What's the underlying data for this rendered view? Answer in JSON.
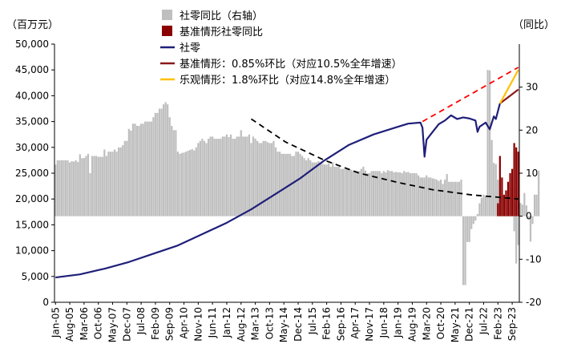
{
  "chart_data": {
    "type": "line",
    "left_axis_unit": "（百万元）",
    "right_axis_unit": "（同比）",
    "left_axis": {
      "ylim": [
        0,
        50000
      ],
      "ticks": [
        0,
        5000,
        10000,
        15000,
        20000,
        25000,
        30000,
        35000,
        40000,
        45000,
        50000
      ],
      "tick_labels": [
        "0",
        "5,000",
        "10,000",
        "15,000",
        "20,000",
        "25,000",
        "30,000",
        "35,000",
        "40,000",
        "45,000",
        "50,000"
      ]
    },
    "right_axis": {
      "ylim": [
        -20,
        40
      ],
      "ticks": [
        -20,
        -10,
        0,
        10,
        20,
        30
      ],
      "tick_labels": [
        "-20",
        "-10",
        "0",
        "10",
        "20",
        "30"
      ]
    },
    "x_axis": {
      "range": [
        "Jan-05",
        "Dec-23"
      ],
      "tick_labels": [
        "Jan-05",
        "Aug-05",
        "Mar-06",
        "Oct-06",
        "May-07",
        "Dec-07",
        "Jul-08",
        "Feb-09",
        "Sep-09",
        "Apr-10",
        "Nov-10",
        "Jun-11",
        "Jan-12",
        "Aug-12",
        "Mar-13",
        "Oct-13",
        "May-14",
        "Dec-14",
        "Jul-15",
        "Feb-16",
        "Sep-16",
        "Apr-17",
        "Nov-17",
        "Jun-18",
        "Jan-19",
        "Aug-19",
        "Mar-20",
        "Oct-20",
        "May-21",
        "Dec-21",
        "Jul-22",
        "Feb-23",
        "Sep-23"
      ]
    },
    "legend": [
      {
        "label": "社零同比（右轴）",
        "color": "#bfbfbf",
        "kind": "bar"
      },
      {
        "label": "基准情形社零同比",
        "color": "#8b0000",
        "kind": "bar"
      },
      {
        "label": "社零",
        "color": "#1f1f7a",
        "kind": "line"
      },
      {
        "label": "基准情形：0.85%环比（对应10.5%全年增速）",
        "color": "#8b1a1a",
        "kind": "line"
      },
      {
        "label": "乐观情形：1.8%环比（对应14.8%全年增速）",
        "color": "#ffc000",
        "kind": "line"
      }
    ],
    "series": [
      {
        "name": "社零",
        "axis": "left",
        "color": "#1f1f7a",
        "x": [
          "2005-01",
          "2006-01",
          "2007-01",
          "2008-01",
          "2009-01",
          "2010-01",
          "2011-01",
          "2012-01",
          "2013-01",
          "2014-01",
          "2015-01",
          "2016-01",
          "2017-01",
          "2018-01",
          "2019-01",
          "2019-06",
          "2019-12",
          "2020-01",
          "2020-02",
          "2020-03",
          "2020-04",
          "2020-06",
          "2020-09",
          "2020-12",
          "2021-03",
          "2021-06",
          "2021-09",
          "2021-12",
          "2022-03",
          "2022-04",
          "2022-05",
          "2022-08",
          "2022-10",
          "2022-12",
          "2023-01",
          "2023-03"
        ],
        "values": [
          4800,
          5400,
          6500,
          7800,
          9400,
          11000,
          13200,
          15400,
          18000,
          21000,
          24000,
          27500,
          30500,
          32500,
          34000,
          34600,
          34800,
          33800,
          28200,
          31500,
          32000,
          33000,
          34500,
          35200,
          36200,
          35500,
          35800,
          35600,
          35200,
          33000,
          34000,
          34800,
          33500,
          36000,
          35500,
          38500
        ]
      },
      {
        "name": "基准情形：0.85%环比（对应10.5%全年增速）",
        "axis": "left",
        "color": "#8b1a1a",
        "x": [
          "2023-03",
          "2023-12"
        ],
        "values": [
          38500,
          41200
        ]
      },
      {
        "name": "乐观情形：1.8%环比（对应14.8%全年增速）",
        "axis": "left",
        "color": "#ffc000",
        "x": [
          "2023-03",
          "2023-12"
        ],
        "values": [
          38500,
          45000
        ]
      },
      {
        "name": "trend-red-dashed",
        "axis": "left",
        "color": "#ff0000",
        "dashed": true,
        "x": [
          "2020-01",
          "2023-12"
        ],
        "values": [
          35000,
          45500
        ]
      },
      {
        "name": "trend-black-dashed",
        "axis": "left",
        "color": "#000000",
        "dashed": true,
        "x": [
          "2013-01",
          "2014-06",
          "2016-01",
          "2017-06",
          "2019-01",
          "2020-06",
          "2022-01",
          "2023-12"
        ],
        "values": [
          35500,
          31000,
          27500,
          25000,
          23200,
          21800,
          20800,
          20000
        ]
      },
      {
        "name": "社零同比（右轴）",
        "axis": "right",
        "color": "#bfbfbf",
        "kind": "bar",
        "monthly_start": "2005-01",
        "values": [
          12,
          13,
          13,
          13,
          13,
          13,
          13,
          12.5,
          12.8,
          12.7,
          13,
          12.6,
          14.4,
          13.5,
          13.5,
          14,
          14.5,
          10,
          14,
          14,
          14,
          13.8,
          13.8,
          13.8,
          15.5,
          14,
          15,
          15,
          15,
          15.5,
          15,
          16,
          16,
          16.5,
          17.5,
          17.5,
          20.3,
          19.9,
          21.5,
          21.5,
          21,
          21,
          21.5,
          21.5,
          22,
          22,
          22,
          22,
          23,
          24,
          24,
          25,
          25,
          26,
          26.5,
          26,
          23,
          21,
          20,
          20,
          15,
          14.5,
          14.7,
          14.8,
          15,
          15.2,
          15.4,
          15.6,
          15.3,
          16,
          17,
          17.5,
          18,
          17.5,
          17,
          18,
          18.5,
          18.5,
          18,
          18,
          18,
          18,
          18.5,
          18.5,
          19,
          18.4,
          19,
          18,
          18,
          18.5,
          18.5,
          20,
          18.5,
          18.5,
          18.5,
          19,
          17,
          18.5,
          18,
          17.5,
          17,
          17,
          17.5,
          17.5,
          17.2,
          17,
          17,
          17.5,
          16,
          15,
          15,
          14.5,
          14.5,
          14.5,
          14.5,
          14.5,
          14,
          14,
          15,
          15,
          14.5,
          14,
          13.5,
          13,
          13.5,
          13,
          12.5,
          12.5,
          12.5,
          12.8,
          12.5,
          12.2,
          12,
          12,
          12.3,
          11.5,
          12.5,
          11.5,
          11.5,
          11.5,
          11,
          11,
          11,
          11,
          11,
          10.8,
          10.6,
          10.6,
          10.5,
          10.5,
          11,
          11.5,
          10.6,
          10,
          10,
          10.5,
          10.5,
          10.5,
          10.5,
          10.5,
          10,
          10.5,
          10.2,
          10.7,
          10.5,
          10.5,
          10.2,
          10.3,
          10.2,
          10.2,
          10,
          10.5,
          10.2,
          10.3,
          10,
          10,
          10,
          10,
          9.5,
          9,
          9,
          9,
          9.5,
          9,
          9,
          8.8,
          8.7,
          8.5,
          8.2,
          8.5,
          7.5,
          8.5,
          9.8,
          8,
          8,
          8,
          8,
          8,
          8,
          8.5,
          -16,
          -16,
          -6,
          -6,
          -3,
          -1.8,
          -1,
          0.5,
          3,
          4.3,
          5,
          4.6,
          34,
          33.9,
          17.7,
          12.4,
          12.1,
          8.5,
          2.5,
          4.4,
          4.9,
          3.9,
          1.7,
          6.7,
          6.7,
          -3.5,
          -11,
          -6.7,
          3.1,
          2.7,
          5.4,
          2.5,
          -0.5,
          -5.9,
          -1.8,
          5,
          5,
          10.6
        ]
      },
      {
        "name": "基准情形社零同比",
        "axis": "right",
        "color": "#8b0000",
        "kind": "bar",
        "monthly_start": "2023-02",
        "values": [
          3,
          14,
          9,
          5,
          6,
          8,
          10,
          11,
          17,
          16,
          15
        ]
      }
    ]
  }
}
